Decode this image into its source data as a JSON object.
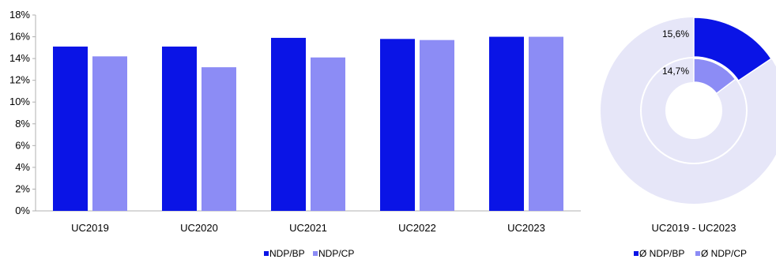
{
  "colors": {
    "bp": "#0a14e6",
    "cp": "#8c8cf5",
    "track": "#e6e6f8",
    "axis": "#b0b0b0"
  },
  "chart_data": [
    {
      "type": "bar",
      "categories": [
        "UC2019",
        "UC2020",
        "UC2021",
        "UC2022",
        "UC2023"
      ],
      "series": [
        {
          "name": "NDP/BP",
          "values": [
            15.1,
            15.1,
            15.9,
            15.8,
            16.0
          ]
        },
        {
          "name": "NDP/CP",
          "values": [
            14.2,
            13.2,
            14.1,
            15.7,
            16.0
          ]
        }
      ],
      "ylim": [
        0,
        18
      ],
      "yticks": [
        "0%",
        "2%",
        "4%",
        "6%",
        "8%",
        "10%",
        "12%",
        "14%",
        "16%",
        "18%"
      ],
      "grid": false,
      "legend": "bottom-center"
    },
    {
      "type": "pie",
      "subtype": "nested-donut",
      "series": [
        {
          "name": "Ø NDP/BP",
          "value": 15.6,
          "label": "15,6%"
        },
        {
          "name": "Ø NDP/CP",
          "value": 14.7,
          "label": "14,7%"
        }
      ],
      "xlabel": "UC2019 - UC2023",
      "legend": "bottom-center"
    }
  ]
}
